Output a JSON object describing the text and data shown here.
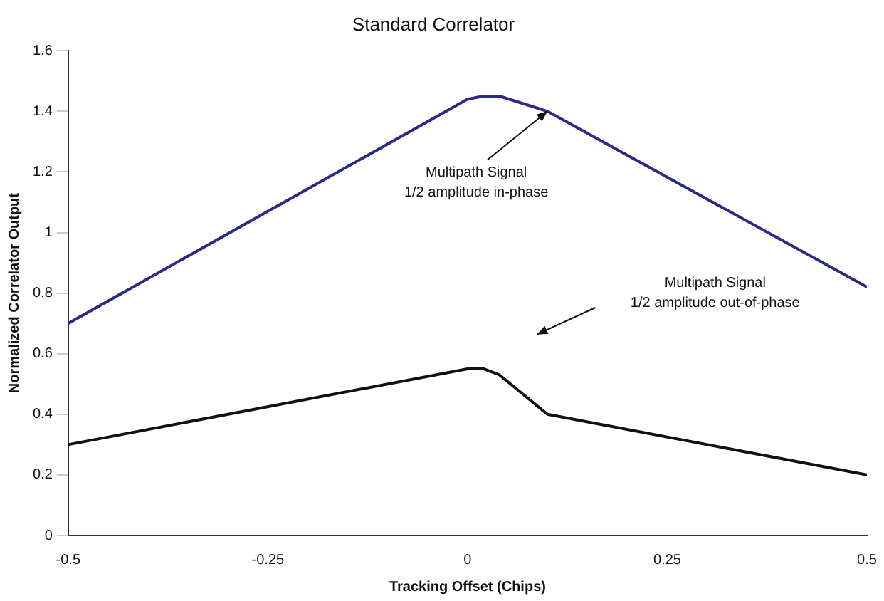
{
  "chart_data": {
    "type": "line",
    "title": "Standard Correlator",
    "xlabel": "Tracking Offset (Chips)",
    "ylabel": "Normalized Correlator Output",
    "x": [
      -0.5,
      0,
      0.02,
      0.04,
      0.1,
      0.5
    ],
    "series": [
      {
        "color": "#2b2b86",
        "values": [
          0.7,
          1.44,
          1.45,
          1.45,
          1.4,
          0.82
        ]
      },
      {
        "color": "#111111",
        "values": [
          0.3,
          0.55,
          0.55,
          0.53,
          0.4,
          0.2
        ]
      }
    ],
    "xlim": [
      -0.5,
      0.5
    ],
    "xticks": [
      -0.5,
      -0.25,
      0,
      0.25,
      0.5
    ],
    "ylim": [
      0,
      1.6
    ],
    "yticks": [
      0,
      0.2,
      0.4,
      0.6,
      0.8,
      1,
      1.2,
      1.4,
      1.6
    ],
    "grid": false,
    "legend": false,
    "marker": "none",
    "line_style": "solid",
    "annotations": [
      {
        "text": "Multipath Signal\n1/2 amplitude in-phase",
        "x": 0.1,
        "y": 1.4
      },
      "Multipath Signal\n1/2 amplitude out-of-phase"
    ]
  }
}
